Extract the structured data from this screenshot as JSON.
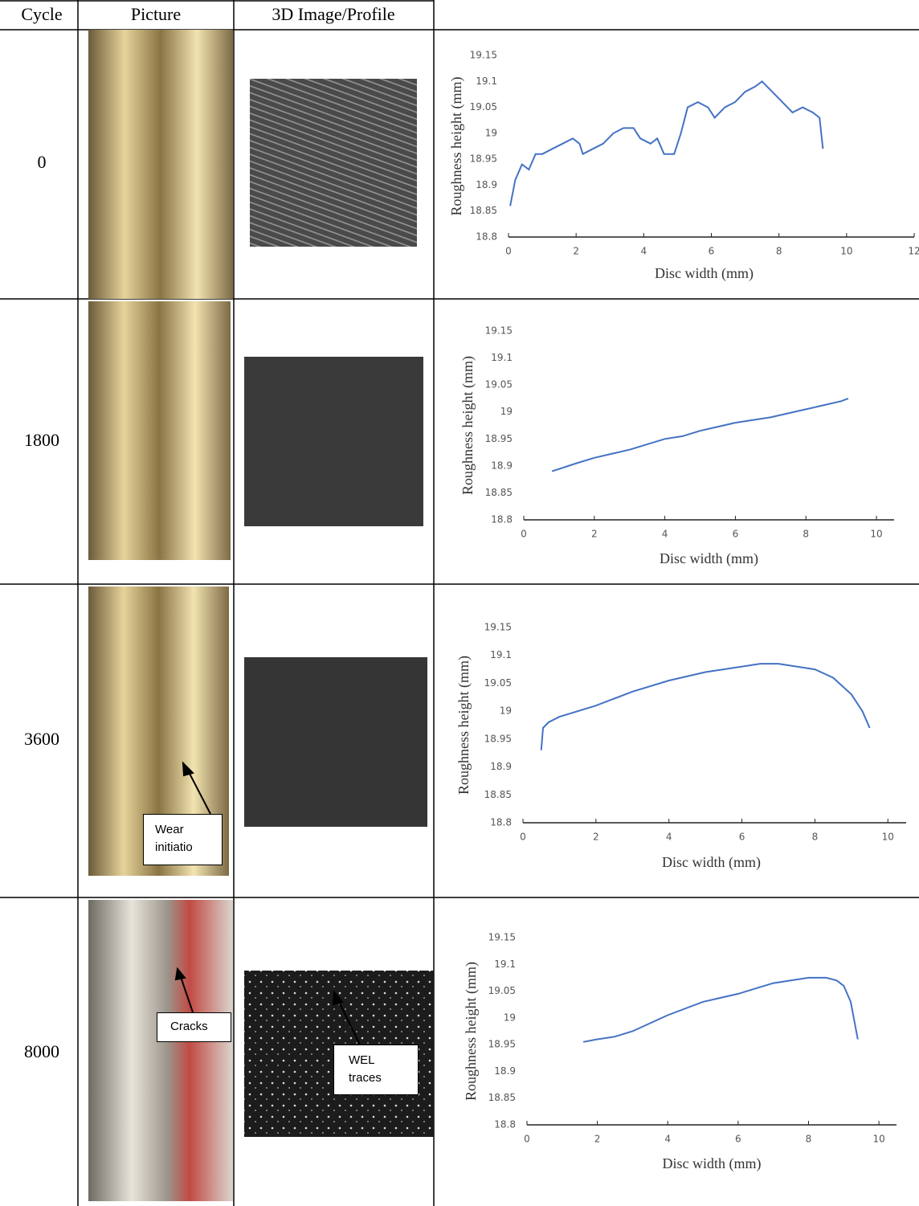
{
  "table": {
    "header": [
      "Cycle",
      "Picture",
      "3D Image/Profile"
    ],
    "rows": [
      {
        "cycle": 0,
        "annotations": []
      },
      {
        "cycle": 1800,
        "annotations": []
      },
      {
        "cycle": 3600,
        "annotations": [
          "Wear initiatio"
        ]
      },
      {
        "cycle": 8000,
        "annotations": [
          "Cracks",
          "WEL traces"
        ]
      }
    ]
  },
  "chart_data": [
    {
      "type": "line",
      "color": "#4472c4",
      "y_label": "Roughness height (mm)",
      "x_label": "Disc width (mm)",
      "xlim": [
        0,
        12
      ],
      "xticks": [
        0,
        2,
        4,
        6,
        8,
        10,
        12
      ],
      "ylim": [
        18.8,
        19.15
      ],
      "yticks": [
        18.8,
        18.85,
        18.9,
        18.95,
        19,
        19.05,
        19.1,
        19.15
      ],
      "x": [
        0.05,
        0.2,
        0.4,
        0.6,
        0.8,
        1.0,
        1.3,
        1.6,
        1.9,
        2.1,
        2.2,
        2.5,
        2.8,
        3.1,
        3.4,
        3.7,
        3.9,
        4.2,
        4.4,
        4.6,
        4.9,
        5.1,
        5.3,
        5.6,
        5.9,
        6.1,
        6.4,
        6.7,
        7.0,
        7.3,
        7.5,
        7.8,
        8.1,
        8.4,
        8.7,
        9.0,
        9.2,
        9.3
      ],
      "values": [
        18.86,
        18.91,
        18.94,
        18.93,
        18.96,
        18.96,
        18.97,
        18.98,
        18.99,
        18.98,
        18.96,
        18.97,
        18.98,
        19.0,
        19.01,
        19.01,
        18.99,
        18.98,
        18.99,
        18.96,
        18.96,
        19.0,
        19.05,
        19.06,
        19.05,
        19.03,
        19.05,
        19.06,
        19.08,
        19.09,
        19.1,
        19.08,
        19.06,
        19.04,
        19.05,
        19.04,
        19.03,
        18.97
      ]
    },
    {
      "type": "line",
      "color": "#4472c4",
      "y_label": "Roughness height (mm)",
      "x_label": "Disc width (mm)",
      "xlim": [
        0,
        10.5
      ],
      "xticks": [
        0,
        2,
        4,
        6,
        8,
        10
      ],
      "ylim": [
        18.8,
        19.15
      ],
      "yticks": [
        18.8,
        18.85,
        18.9,
        18.95,
        19,
        19.05,
        19.1,
        19.15
      ],
      "x": [
        0.8,
        1.5,
        2,
        3,
        4,
        4.5,
        5,
        6,
        7,
        8,
        9,
        9.2
      ],
      "values": [
        18.89,
        18.905,
        18.915,
        18.93,
        18.95,
        18.955,
        18.965,
        18.98,
        18.99,
        19.005,
        19.02,
        19.025
      ]
    },
    {
      "type": "line",
      "color": "#4472c4",
      "y_label": "Roughness height (mm)",
      "x_label": "Disc width (mm)",
      "xlim": [
        0,
        10.5
      ],
      "xticks": [
        0,
        2,
        4,
        6,
        8,
        10
      ],
      "ylim": [
        18.8,
        19.15
      ],
      "yticks": [
        18.8,
        18.85,
        18.9,
        18.95,
        19,
        19.05,
        19.1,
        19.15
      ],
      "x": [
        0.5,
        0.55,
        0.7,
        1,
        2,
        3,
        4,
        5,
        6,
        6.5,
        7,
        7.5,
        8,
        8.5,
        9,
        9.3,
        9.5
      ],
      "values": [
        18.93,
        18.97,
        18.98,
        18.99,
        19.01,
        19.035,
        19.055,
        19.07,
        19.08,
        19.085,
        19.085,
        19.08,
        19.075,
        19.06,
        19.03,
        19.0,
        18.97
      ]
    },
    {
      "type": "line",
      "color": "#4472c4",
      "y_label": "Roughness height (mm)",
      "x_label": "Disc width (mm)",
      "xlim": [
        0,
        10.5
      ],
      "xticks": [
        0,
        2,
        4,
        6,
        8,
        10
      ],
      "ylim": [
        18.8,
        19.15
      ],
      "yticks": [
        18.8,
        18.85,
        18.9,
        18.95,
        19,
        19.05,
        19.1,
        19.15
      ],
      "x": [
        1.6,
        2,
        2.5,
        3,
        3.5,
        4,
        5,
        6,
        6.5,
        7,
        7.5,
        8,
        8.5,
        8.8,
        9,
        9.2,
        9.4
      ],
      "values": [
        18.955,
        18.96,
        18.965,
        18.975,
        18.99,
        19.005,
        19.03,
        19.045,
        19.055,
        19.065,
        19.07,
        19.075,
        19.075,
        19.07,
        19.06,
        19.03,
        18.96
      ]
    }
  ]
}
